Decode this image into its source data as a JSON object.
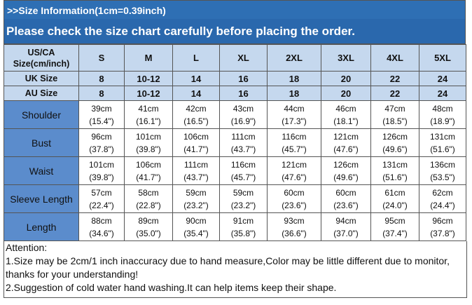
{
  "header": {
    "size_info": ">>Size Information(1cm=0.39inch)",
    "notice": "Please check the size chart carefully before placing the order."
  },
  "size_table": {
    "us_ca_label_line1": "US/CA",
    "us_ca_label_line2": "Size(cm/inch)",
    "us_sizes": [
      "S",
      "M",
      "L",
      "XL",
      "2XL",
      "3XL",
      "4XL",
      "5XL"
    ],
    "uk_label": "UK Size",
    "uk_sizes": [
      "8",
      "10-12",
      "14",
      "16",
      "18",
      "20",
      "22",
      "24"
    ],
    "au_label": "AU Size",
    "au_sizes": [
      "8",
      "10-12",
      "14",
      "16",
      "18",
      "20",
      "22",
      "24"
    ],
    "rows": [
      {
        "label": "Shoulder",
        "cm": [
          "39cm",
          "41cm",
          "42cm",
          "43cm",
          "44cm",
          "46cm",
          "47cm",
          "48cm"
        ],
        "inch": [
          "(15.4\")",
          "(16.1\")",
          "(16.5\")",
          "(16.9\")",
          "(17.3\")",
          "(18.1\")",
          "(18.5\")",
          "(18.9\")"
        ]
      },
      {
        "label": "Bust",
        "cm": [
          "96cm",
          "101cm",
          "106cm",
          "111cm",
          "116cm",
          "121cm",
          "126cm",
          "131cm"
        ],
        "inch": [
          "(37.8\")",
          "(39.8\")",
          "(41.7\")",
          "(43.7\")",
          "(45.7\")",
          "(47.6\")",
          "(49.6\")",
          "(51.6\")"
        ]
      },
      {
        "label": "Waist",
        "cm": [
          "101cm",
          "106cm",
          "111cm",
          "116cm",
          "121cm",
          "126cm",
          "131cm",
          "136cm"
        ],
        "inch": [
          "(39.8\")",
          "(41.7\")",
          "(43.7\")",
          "(45.7\")",
          "(47.6\")",
          "(49.6\")",
          "(51.6\")",
          "(53.5\")"
        ]
      },
      {
        "label": "Sleeve Length",
        "cm": [
          "57cm",
          "58cm",
          "59cm",
          "59cm",
          "60cm",
          "60cm",
          "61cm",
          "62cm"
        ],
        "inch": [
          "(22.4\")",
          "(22.8\")",
          "(23.2\")",
          "(23.2\")",
          "(23.6\")",
          "(23.6\")",
          "(24.0\")",
          "(24.4\")"
        ]
      },
      {
        "label": "Length",
        "cm": [
          "88cm",
          "89cm",
          "90cm",
          "91cm",
          "93cm",
          "94cm",
          "95cm",
          "96cm"
        ],
        "inch": [
          "(34.6\")",
          "(35.0\")",
          "(35.4\")",
          "(35.8\")",
          "(36.6\")",
          "(37.0\")",
          "(37.4\")",
          "(37.8\")"
        ]
      }
    ]
  },
  "notes": {
    "title": "Attention:",
    "line1": "1.Size may be 2cm/1 inch inaccuracy due to hand measure,Color may be little different due to monitor,",
    "line1b": "thanks for your understanding!",
    "line2": "2.Suggestion of cold water hand washing.It can help items keep their shape."
  },
  "colors": {
    "banner": "#2e6fb4",
    "header_row": "#c5d8ee",
    "row_label": "#5b8ccc"
  }
}
